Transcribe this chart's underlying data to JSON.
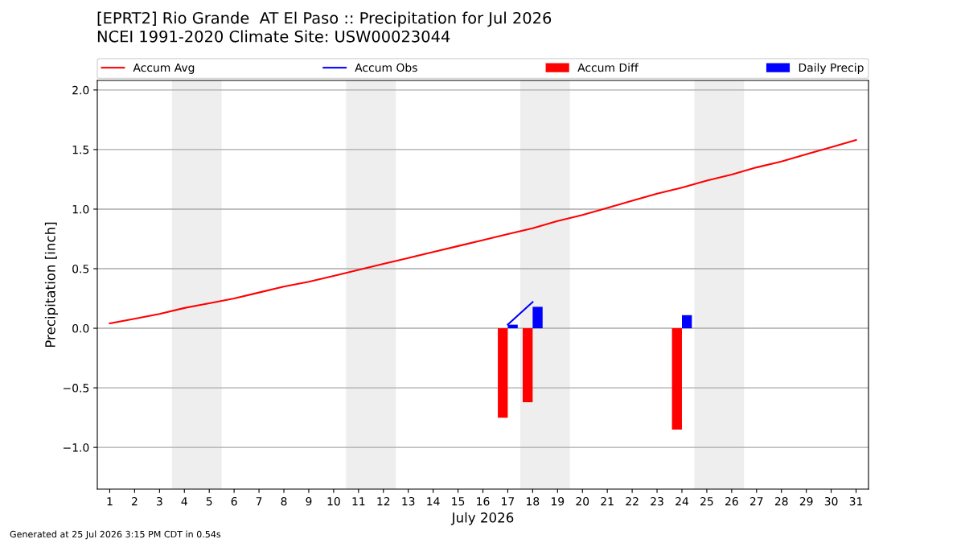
{
  "chart_data": {
    "type": "line",
    "title": "[EPRT2] Rio Grande  AT El Paso :: Precipitation for Jul 2026",
    "subtitle": "NCEI 1991-2020 Climate Site: USW00023044",
    "xlabel": "July 2026",
    "ylabel": "Precipitation [inch]",
    "annotations": [
      "Generated at 25 Jul 2026 3:15 PM CDT in 0.54s"
    ],
    "x": [
      1,
      2,
      3,
      4,
      5,
      6,
      7,
      8,
      9,
      10,
      11,
      12,
      13,
      14,
      15,
      16,
      17,
      18,
      19,
      20,
      21,
      22,
      23,
      24,
      25,
      26,
      27,
      28,
      29,
      30,
      31
    ],
    "series": [
      {
        "name": "Accum Avg",
        "color": "#ff0000",
        "values": [
          0.04,
          0.08,
          0.12,
          0.17,
          0.21,
          0.25,
          0.3,
          0.35,
          0.39,
          0.44,
          0.49,
          0.54,
          0.59,
          0.64,
          0.69,
          0.74,
          0.79,
          0.84,
          0.9,
          0.95,
          1.01,
          1.07,
          1.13,
          1.18,
          1.24,
          1.29,
          1.35,
          1.4,
          1.46,
          1.52,
          1.58
        ]
      },
      {
        "name": "Accum Obs",
        "color": "#0000ff",
        "x": [
          17,
          18
        ],
        "values": [
          0.03,
          0.22
        ]
      },
      {
        "name": "Accum Diff",
        "type": "bar",
        "color": "#ff0000",
        "x": [
          17,
          18,
          24
        ],
        "values": [
          -0.75,
          -0.62,
          -0.85
        ]
      },
      {
        "name": "Daily Precip",
        "type": "bar",
        "color": "#0000ff",
        "x": [
          17,
          18,
          24
        ],
        "values": [
          0.03,
          0.18,
          0.11
        ]
      }
    ],
    "bands": [
      {
        "axis": "x",
        "from": 3.5,
        "to": 5.5,
        "color": "#eeeeee"
      },
      {
        "axis": "x",
        "from": 10.5,
        "to": 12.5,
        "color": "#eeeeee"
      },
      {
        "axis": "x",
        "from": 17.5,
        "to": 19.5,
        "color": "#eeeeee"
      },
      {
        "axis": "x",
        "from": 24.5,
        "to": 26.5,
        "color": "#eeeeee"
      }
    ],
    "xlim": [
      0.5,
      31.5
    ],
    "xticks": [
      1,
      2,
      3,
      4,
      5,
      6,
      7,
      8,
      9,
      10,
      11,
      12,
      13,
      14,
      15,
      16,
      17,
      18,
      19,
      20,
      21,
      22,
      23,
      24,
      25,
      26,
      27,
      28,
      29,
      30,
      31
    ],
    "ylim": [
      -1.35,
      2.08
    ],
    "yticks": [
      {
        "value": -1.0,
        "label": "−1.0"
      },
      {
        "value": -0.5,
        "label": "−0.5"
      },
      {
        "value": 0.0,
        "label": "0.0"
      },
      {
        "value": 0.5,
        "label": "0.5"
      },
      {
        "value": 1.0,
        "label": "1.0"
      },
      {
        "value": 1.5,
        "label": "1.5"
      },
      {
        "value": 2.0,
        "label": "2.0"
      }
    ],
    "grid": "y",
    "legend": "top"
  }
}
